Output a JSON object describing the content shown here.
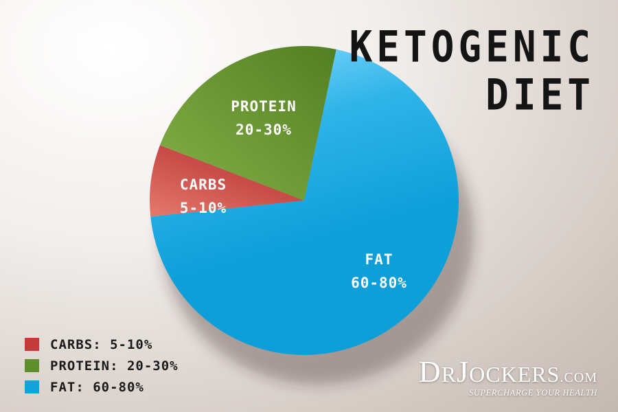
{
  "chart_data": {
    "type": "pie",
    "title_lines": [
      "KETOGENIC",
      "DIET"
    ],
    "slices": [
      {
        "label": "CARBS",
        "value_text": "5-10%",
        "legend_text": "CARBS:  5-10%",
        "value": 7.5,
        "color": "#c23b3b",
        "color_light": "#e5796c"
      },
      {
        "label": "PROTEIN",
        "value_text": "20-30%",
        "legend_text": "PROTEIN:  20-30%",
        "value": 22.5,
        "color": "#5f8e2c",
        "color_light": "#7ea83e"
      },
      {
        "label": "FAT",
        "value_text": "60-80%",
        "legend_text": "FAT:  60-80%",
        "value": 70,
        "color": "#12a3db",
        "color_light": "#8cdcff"
      }
    ],
    "legend_position": "bottom-left"
  },
  "brand": {
    "name_prefix": "D",
    "name_small_1": "R",
    "name_big_2": "J",
    "name_small_2": "OCKERS",
    "domain": ".COM",
    "tagline": "SUPERCHARGE YOUR HEALTH",
    "color": "#ffffff"
  }
}
